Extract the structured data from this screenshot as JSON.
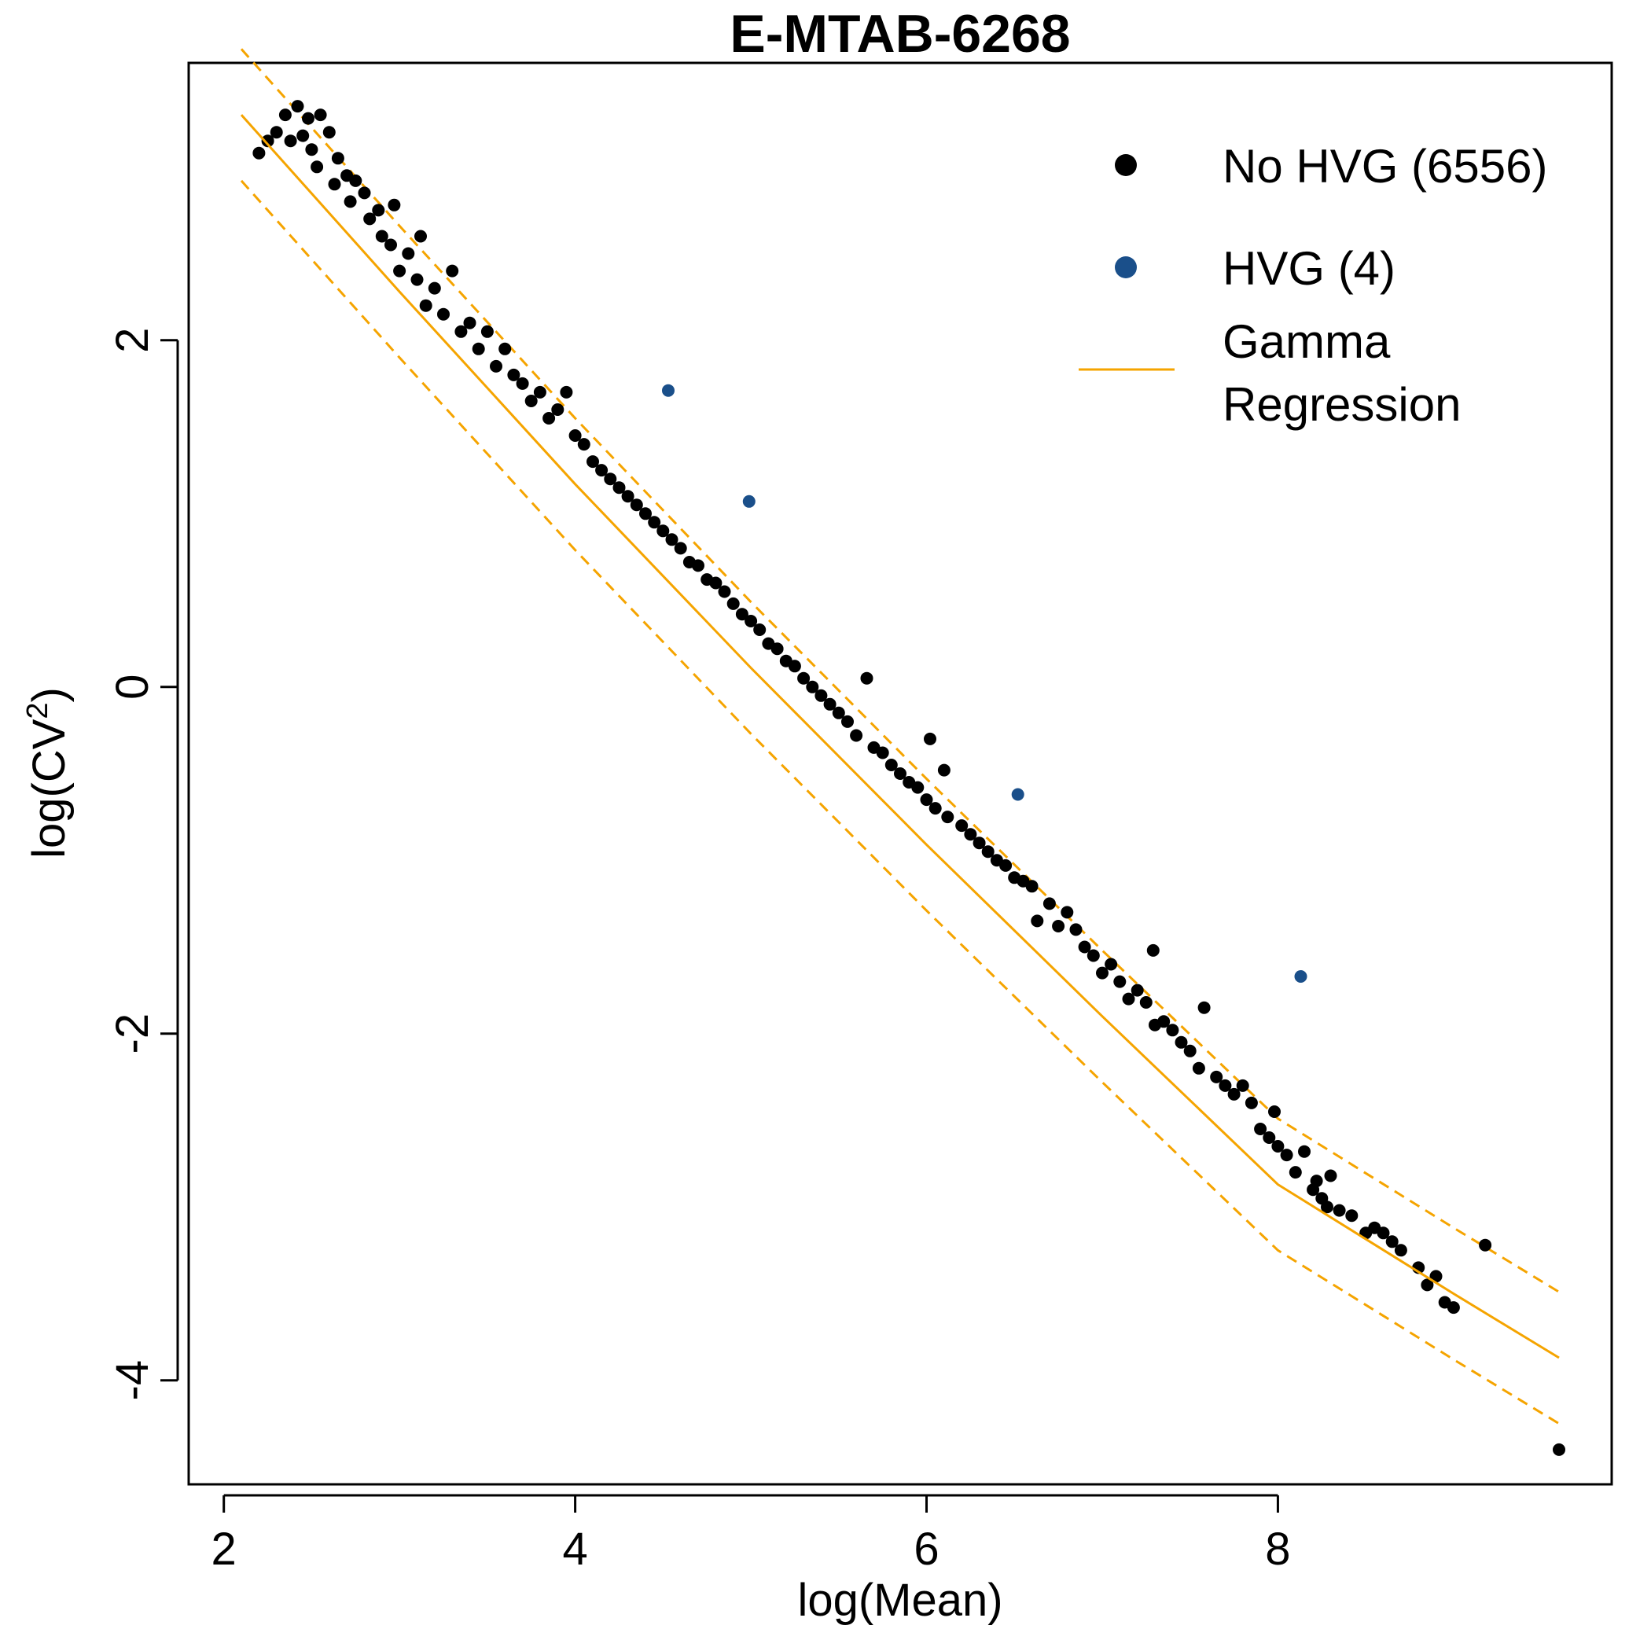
{
  "chart_data": {
    "type": "scatter",
    "title": "E-MTAB-6268",
    "xlabel": "log(Mean)",
    "ylabel_base": "log(CV",
    "ylabel_sup": "2",
    "ylabel_end": ")",
    "xlim": [
      1.8,
      9.9
    ],
    "ylim": [
      -4.6,
      3.6
    ],
    "x_ticks": [
      2,
      4,
      6,
      8
    ],
    "x_tick_labels": [
      "2",
      "4",
      "6",
      "8"
    ],
    "y_ticks": [
      -4,
      -2,
      0,
      2
    ],
    "y_tick_labels": [
      "-4",
      "-2",
      "0",
      "2"
    ],
    "grid": false,
    "legend_position": "top-right",
    "colors": {
      "no_hvg": "#000000",
      "hvg": "#1a4f8a",
      "regression": "#f5a400"
    },
    "legend": [
      {
        "label": "No HVG (6556)",
        "marker": "point",
        "color": "#000000"
      },
      {
        "label": "HVG (4)",
        "marker": "point",
        "color": "#1a4f8a"
      },
      {
        "label_lines": [
          "Gamma",
          "Regression"
        ],
        "marker": "line",
        "color": "#f5a400"
      }
    ],
    "regression": {
      "name": "Gamma Regression",
      "x": [
        2.1,
        3.0,
        4.0,
        5.0,
        6.0,
        7.0,
        8.0,
        9.0,
        9.6
      ],
      "y": [
        3.3,
        2.28,
        1.17,
        0.11,
        -0.91,
        -1.9,
        -2.87,
        -3.5,
        -3.87
      ],
      "upper_offset": 0.38,
      "lower_offset": -0.38
    },
    "series": [
      {
        "name": "HVG (4)",
        "points": [
          [
            4.53,
            1.71
          ],
          [
            4.99,
            1.07
          ],
          [
            6.52,
            -0.62
          ],
          [
            8.13,
            -1.67
          ]
        ]
      },
      {
        "name": "No HVG (6556)",
        "points": [
          [
            2.2,
            3.08
          ],
          [
            2.25,
            3.15
          ],
          [
            2.3,
            3.2
          ],
          [
            2.35,
            3.3
          ],
          [
            2.38,
            3.15
          ],
          [
            2.42,
            3.35
          ],
          [
            2.45,
            3.18
          ],
          [
            2.48,
            3.28
          ],
          [
            2.5,
            3.1
          ],
          [
            2.53,
            3.0
          ],
          [
            2.55,
            3.3
          ],
          [
            2.6,
            3.2
          ],
          [
            2.63,
            2.9
          ],
          [
            2.65,
            3.05
          ],
          [
            2.7,
            2.95
          ],
          [
            2.72,
            2.8
          ],
          [
            2.75,
            2.92
          ],
          [
            2.8,
            2.85
          ],
          [
            2.83,
            2.7
          ],
          [
            2.88,
            2.75
          ],
          [
            2.9,
            2.6
          ],
          [
            2.95,
            2.55
          ],
          [
            2.97,
            2.78
          ],
          [
            3.0,
            2.4
          ],
          [
            3.05,
            2.5
          ],
          [
            3.1,
            2.35
          ],
          [
            3.12,
            2.6
          ],
          [
            3.15,
            2.2
          ],
          [
            3.2,
            2.3
          ],
          [
            3.25,
            2.15
          ],
          [
            3.3,
            2.4
          ],
          [
            3.35,
            2.05
          ],
          [
            3.4,
            2.1
          ],
          [
            3.45,
            1.95
          ],
          [
            3.5,
            2.05
          ],
          [
            3.55,
            1.85
          ],
          [
            3.6,
            1.95
          ],
          [
            3.65,
            1.8
          ],
          [
            3.7,
            1.75
          ],
          [
            3.75,
            1.65
          ],
          [
            3.8,
            1.7
          ],
          [
            3.85,
            1.55
          ],
          [
            3.9,
            1.6
          ],
          [
            3.95,
            1.7
          ],
          [
            4.0,
            1.45
          ],
          [
            4.05,
            1.4
          ],
          [
            4.1,
            1.3
          ],
          [
            4.15,
            1.25
          ],
          [
            4.2,
            1.2
          ],
          [
            4.25,
            1.15
          ],
          [
            4.3,
            1.1
          ],
          [
            4.35,
            1.05
          ],
          [
            4.4,
            1.0
          ],
          [
            4.45,
            0.95
          ],
          [
            4.5,
            0.9
          ],
          [
            4.55,
            0.85
          ],
          [
            4.6,
            0.8
          ],
          [
            4.65,
            0.72
          ],
          [
            4.7,
            0.7
          ],
          [
            4.75,
            0.62
          ],
          [
            4.8,
            0.6
          ],
          [
            4.85,
            0.55
          ],
          [
            4.9,
            0.48
          ],
          [
            4.95,
            0.42
          ],
          [
            5.0,
            0.38
          ],
          [
            5.05,
            0.33
          ],
          [
            5.1,
            0.25
          ],
          [
            5.15,
            0.22
          ],
          [
            5.2,
            0.15
          ],
          [
            5.25,
            0.12
          ],
          [
            5.3,
            0.05
          ],
          [
            5.35,
            0.0
          ],
          [
            5.4,
            -0.05
          ],
          [
            5.45,
            -0.1
          ],
          [
            5.5,
            -0.15
          ],
          [
            5.55,
            -0.2
          ],
          [
            5.6,
            -0.28
          ],
          [
            5.66,
            0.05
          ],
          [
            5.7,
            -0.35
          ],
          [
            5.75,
            -0.38
          ],
          [
            5.8,
            -0.45
          ],
          [
            5.85,
            -0.5
          ],
          [
            5.9,
            -0.55
          ],
          [
            5.95,
            -0.58
          ],
          [
            6.0,
            -0.65
          ],
          [
            6.02,
            -0.3
          ],
          [
            6.05,
            -0.7
          ],
          [
            6.1,
            -0.48
          ],
          [
            6.12,
            -0.75
          ],
          [
            6.2,
            -0.8
          ],
          [
            6.25,
            -0.85
          ],
          [
            6.3,
            -0.9
          ],
          [
            6.35,
            -0.95
          ],
          [
            6.4,
            -1.0
          ],
          [
            6.45,
            -1.03
          ],
          [
            6.5,
            -1.1
          ],
          [
            6.55,
            -1.12
          ],
          [
            6.6,
            -1.15
          ],
          [
            6.63,
            -1.35
          ],
          [
            6.7,
            -1.25
          ],
          [
            6.75,
            -1.38
          ],
          [
            6.8,
            -1.3
          ],
          [
            6.85,
            -1.4
          ],
          [
            6.9,
            -1.5
          ],
          [
            6.95,
            -1.55
          ],
          [
            7.0,
            -1.65
          ],
          [
            7.05,
            -1.6
          ],
          [
            7.1,
            -1.7
          ],
          [
            7.15,
            -1.8
          ],
          [
            7.2,
            -1.75
          ],
          [
            7.25,
            -1.82
          ],
          [
            7.29,
            -1.52
          ],
          [
            7.3,
            -1.95
          ],
          [
            7.35,
            -1.93
          ],
          [
            7.4,
            -1.98
          ],
          [
            7.45,
            -2.05
          ],
          [
            7.5,
            -2.1
          ],
          [
            7.55,
            -2.2
          ],
          [
            7.58,
            -1.85
          ],
          [
            7.65,
            -2.25
          ],
          [
            7.7,
            -2.3
          ],
          [
            7.75,
            -2.35
          ],
          [
            7.8,
            -2.3
          ],
          [
            7.85,
            -2.4
          ],
          [
            7.9,
            -2.55
          ],
          [
            7.95,
            -2.6
          ],
          [
            7.98,
            -2.45
          ],
          [
            8.0,
            -2.65
          ],
          [
            8.05,
            -2.7
          ],
          [
            8.1,
            -2.8
          ],
          [
            8.15,
            -2.68
          ],
          [
            8.2,
            -2.9
          ],
          [
            8.22,
            -2.85
          ],
          [
            8.25,
            -2.95
          ],
          [
            8.28,
            -3.0
          ],
          [
            8.3,
            -2.82
          ],
          [
            8.35,
            -3.02
          ],
          [
            8.42,
            -3.05
          ],
          [
            8.5,
            -3.15
          ],
          [
            8.55,
            -3.12
          ],
          [
            8.6,
            -3.15
          ],
          [
            8.65,
            -3.2
          ],
          [
            8.7,
            -3.25
          ],
          [
            8.8,
            -3.35
          ],
          [
            8.85,
            -3.45
          ],
          [
            8.9,
            -3.4
          ],
          [
            8.95,
            -3.55
          ],
          [
            9.0,
            -3.58
          ],
          [
            9.18,
            -3.22
          ],
          [
            9.6,
            -4.4
          ]
        ]
      }
    ]
  }
}
